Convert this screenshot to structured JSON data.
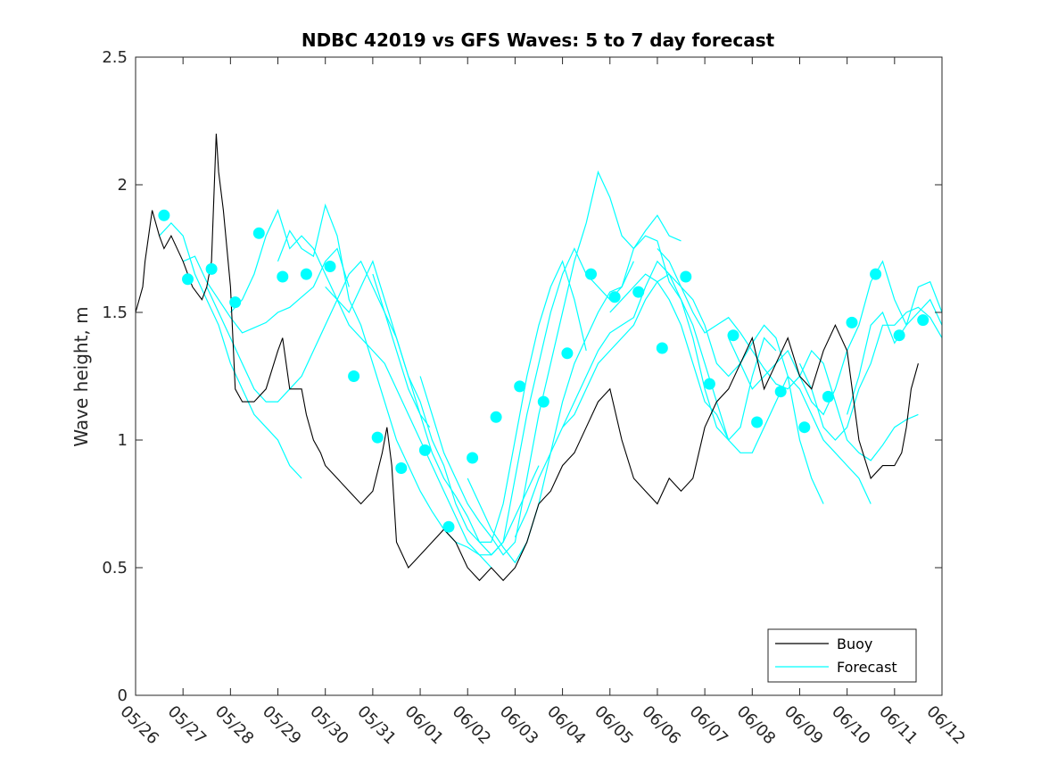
{
  "chart_data": {
    "type": "line",
    "title": "NDBC 42019 vs GFS Waves: 5 to 7 day forecast",
    "xlabel": "",
    "ylabel": "Wave height, m",
    "xlim": [
      0,
      17
    ],
    "ylim": [
      0,
      2.5
    ],
    "grid": false,
    "legend_position": "bottom-right",
    "x_tick_labels": [
      "05/26",
      "05/27",
      "05/28",
      "05/29",
      "05/30",
      "05/31",
      "06/01",
      "06/02",
      "06/03",
      "06/04",
      "06/05",
      "06/06",
      "06/07",
      "06/08",
      "06/09",
      "06/10",
      "06/11",
      "06/12"
    ],
    "y_ticks": [
      0,
      0.5,
      1,
      1.5,
      2,
      2.5
    ],
    "y_tick_labels": [
      "0",
      "0.5",
      "1",
      "1.5",
      "2",
      "2.5"
    ],
    "colors": {
      "buoy": "#000000",
      "forecast": "#00FFFF"
    },
    "series": [
      {
        "name": "Buoy",
        "x": [
          0,
          0.15,
          0.2,
          0.35,
          0.5,
          0.6,
          0.75,
          1.0,
          1.2,
          1.4,
          1.5,
          1.6,
          1.7,
          1.75,
          1.85,
          2.0,
          2.1,
          2.25,
          2.5,
          2.75,
          3.0,
          3.1,
          3.25,
          3.5,
          3.6,
          3.75,
          3.9,
          4.0,
          4.25,
          4.5,
          4.75,
          5.0,
          5.2,
          5.3,
          5.4,
          5.5,
          5.75,
          6.0,
          6.25,
          6.5,
          6.75,
          7.0,
          7.25,
          7.5,
          7.75,
          8.0,
          8.25,
          8.5,
          8.75,
          9.0,
          9.25,
          9.5,
          9.75,
          10.0,
          10.25,
          10.5,
          10.75,
          11.0,
          11.25,
          11.5,
          11.75,
          12.0,
          12.25,
          12.5,
          12.75,
          13.0,
          13.25,
          13.5,
          13.75,
          14.0,
          14.25,
          14.5,
          14.75,
          15.0,
          15.25,
          15.5,
          15.75,
          16.0,
          16.15,
          16.25,
          16.35,
          16.5
        ],
        "values": [
          1.5,
          1.6,
          1.7,
          1.9,
          1.8,
          1.75,
          1.8,
          1.7,
          1.6,
          1.55,
          1.6,
          1.7,
          2.2,
          2.05,
          1.9,
          1.6,
          1.2,
          1.15,
          1.15,
          1.2,
          1.35,
          1.4,
          1.2,
          1.2,
          1.1,
          1.0,
          0.95,
          0.9,
          0.85,
          0.8,
          0.75,
          0.8,
          0.95,
          1.05,
          0.9,
          0.6,
          0.5,
          0.55,
          0.6,
          0.65,
          0.6,
          0.5,
          0.45,
          0.5,
          0.45,
          0.5,
          0.6,
          0.75,
          0.8,
          0.9,
          0.95,
          1.05,
          1.15,
          1.2,
          1.0,
          0.85,
          0.8,
          0.75,
          0.85,
          0.8,
          0.85,
          1.05,
          1.15,
          1.2,
          1.3,
          1.4,
          1.2,
          1.3,
          1.4,
          1.25,
          1.2,
          1.35,
          1.45,
          1.35,
          1.0,
          0.85,
          0.9,
          0.9,
          0.95,
          1.05,
          1.2,
          1.3
        ]
      },
      {
        "name": "Forecast",
        "segments": [
          {
            "x": [
              0.5,
              0.75,
              1.0,
              1.25,
              1.5,
              1.75,
              2.0,
              2.25,
              2.5,
              2.75,
              3.0,
              3.25,
              3.5
            ],
            "values": [
              1.8,
              1.85,
              1.8,
              1.65,
              1.55,
              1.45,
              1.3,
              1.2,
              1.1,
              1.05,
              1.0,
              0.9,
              0.85
            ]
          },
          {
            "x": [
              1.0,
              1.25,
              1.5,
              1.75,
              2.0,
              2.25,
              2.5,
              2.75,
              3.0,
              3.25,
              3.5,
              3.75,
              4.0,
              4.25,
              4.5
            ],
            "values": [
              1.7,
              1.72,
              1.62,
              1.55,
              1.48,
              1.42,
              1.44,
              1.46,
              1.5,
              1.52,
              1.56,
              1.6,
              1.7,
              1.75,
              1.6
            ]
          },
          {
            "x": [
              1.5,
              1.75,
              2.0,
              2.25,
              2.5,
              2.75,
              3.0,
              3.25,
              3.5,
              3.75,
              4.0,
              4.25,
              4.5,
              4.75,
              5.0,
              5.25,
              5.5,
              5.75,
              6.0,
              6.2
            ],
            "values": [
              1.6,
              1.5,
              1.4,
              1.3,
              1.2,
              1.15,
              1.15,
              1.2,
              1.25,
              1.35,
              1.45,
              1.55,
              1.65,
              1.7,
              1.6,
              1.5,
              1.35,
              1.2,
              1.1,
              1.05
            ]
          },
          {
            "x": [
              2.0,
              2.25,
              2.5,
              2.75,
              3.0,
              3.25,
              3.5,
              3.75,
              4.0,
              4.25,
              4.5,
              4.75,
              5.0,
              5.25,
              5.5,
              5.75,
              6.0,
              6.25,
              6.5,
              6.75,
              7.0,
              7.25,
              7.5
            ],
            "values": [
              1.5,
              1.55,
              1.65,
              1.8,
              1.9,
              1.75,
              1.8,
              1.75,
              1.65,
              1.55,
              1.45,
              1.4,
              1.35,
              1.3,
              1.2,
              1.1,
              1.0,
              0.9,
              0.8,
              0.7,
              0.6,
              0.55,
              0.5
            ]
          },
          {
            "x": [
              3.0,
              3.25,
              3.5,
              3.75,
              4.0,
              4.25,
              4.5,
              4.75,
              5.0,
              5.25,
              5.5,
              5.75,
              6.0,
              6.25,
              6.5,
              6.75,
              7.0,
              7.25,
              7.5,
              7.75,
              8.0,
              8.25,
              8.5
            ],
            "values": [
              1.7,
              1.82,
              1.75,
              1.72,
              1.92,
              1.8,
              1.55,
              1.45,
              1.3,
              1.15,
              1.0,
              0.9,
              0.8,
              0.72,
              0.65,
              0.6,
              0.58,
              0.55,
              0.55,
              0.6,
              0.7,
              0.8,
              0.9
            ]
          },
          {
            "x": [
              4.0,
              4.25,
              4.5,
              4.75,
              5.0,
              5.25,
              5.5,
              5.75,
              6.0,
              6.25,
              6.5,
              6.75,
              7.0,
              7.25,
              7.5,
              7.75,
              8.0,
              8.25,
              8.5,
              8.75,
              9.0,
              9.25,
              9.5
            ],
            "values": [
              1.6,
              1.55,
              1.5,
              1.6,
              1.7,
              1.55,
              1.4,
              1.25,
              1.15,
              1.0,
              0.9,
              0.75,
              0.65,
              0.6,
              0.6,
              0.75,
              1.0,
              1.25,
              1.45,
              1.6,
              1.7,
              1.55,
              1.35
            ]
          },
          {
            "x": [
              5.0,
              5.25,
              5.5,
              5.75,
              6.0,
              6.25,
              6.5,
              6.75,
              7.0,
              7.25,
              7.5,
              7.75,
              8.0,
              8.25,
              8.5,
              8.75,
              9.0,
              9.25,
              9.5,
              9.75,
              10.0,
              10.25,
              10.5
            ],
            "values": [
              1.65,
              1.5,
              1.4,
              1.25,
              1.1,
              0.95,
              0.85,
              0.78,
              0.7,
              0.6,
              0.55,
              0.6,
              0.85,
              1.1,
              1.3,
              1.5,
              1.65,
              1.75,
              1.65,
              1.6,
              1.55,
              1.6,
              1.7
            ]
          },
          {
            "x": [
              6.0,
              6.25,
              6.5,
              6.75,
              7.0,
              7.25,
              7.5,
              7.75,
              8.0,
              8.25,
              8.5,
              8.75,
              9.0,
              9.25,
              9.5,
              9.75,
              10.0,
              10.25,
              10.5,
              10.75,
              11.0,
              11.25,
              11.5
            ],
            "values": [
              1.25,
              1.1,
              0.95,
              0.85,
              0.75,
              0.68,
              0.62,
              0.55,
              0.6,
              0.85,
              1.1,
              1.3,
              1.5,
              1.7,
              1.85,
              2.05,
              1.95,
              1.8,
              1.75,
              1.82,
              1.88,
              1.8,
              1.78
            ]
          },
          {
            "x": [
              7.0,
              7.25,
              7.5,
              7.75,
              8.0,
              8.25,
              8.5,
              8.75,
              9.0,
              9.25,
              9.5,
              9.75,
              10.0,
              10.25,
              10.5,
              10.75,
              11.0,
              11.25,
              11.5,
              11.75,
              12.0,
              12.25,
              12.5
            ],
            "values": [
              0.85,
              0.75,
              0.65,
              0.58,
              0.52,
              0.6,
              0.75,
              0.95,
              1.15,
              1.3,
              1.4,
              1.5,
              1.58,
              1.6,
              1.75,
              1.8,
              1.78,
              1.62,
              1.55,
              1.45,
              1.3,
              1.15,
              1.0
            ]
          },
          {
            "x": [
              8.0,
              8.25,
              8.5,
              8.75,
              9.0,
              9.25,
              9.5,
              9.75,
              10.0,
              10.25,
              10.5,
              10.75,
              11.0,
              11.25,
              11.5,
              11.75,
              12.0,
              12.25,
              12.5,
              12.75,
              13.0,
              13.25,
              13.5
            ],
            "values": [
              0.62,
              0.72,
              0.85,
              0.95,
              1.05,
              1.15,
              1.25,
              1.35,
              1.42,
              1.45,
              1.48,
              1.6,
              1.7,
              1.65,
              1.55,
              1.4,
              1.2,
              1.05,
              1.0,
              1.05,
              1.25,
              1.4,
              1.35
            ]
          },
          {
            "x": [
              9.0,
              9.25,
              9.5,
              9.75,
              10.0,
              10.25,
              10.5,
              10.75,
              11.0,
              11.25,
              11.5,
              11.75,
              12.0,
              12.25,
              12.5,
              12.75,
              13.0,
              13.25,
              13.5,
              13.75,
              14.0,
              14.25,
              14.5
            ],
            "values": [
              1.05,
              1.1,
              1.2,
              1.3,
              1.35,
              1.4,
              1.45,
              1.55,
              1.62,
              1.65,
              1.6,
              1.55,
              1.45,
              1.3,
              1.25,
              1.3,
              1.38,
              1.45,
              1.4,
              1.25,
              1.0,
              0.85,
              0.75
            ]
          },
          {
            "x": [
              10.0,
              10.25,
              10.5,
              10.75,
              11.0,
              11.25,
              11.5,
              11.75,
              12.0,
              12.25,
              12.5,
              12.75,
              13.0,
              13.25,
              13.5,
              13.75,
              14.0,
              14.25,
              14.5,
              14.75,
              15.0,
              15.25,
              15.5
            ],
            "values": [
              1.5,
              1.55,
              1.6,
              1.65,
              1.62,
              1.55,
              1.45,
              1.3,
              1.15,
              1.1,
              1.0,
              0.95,
              0.95,
              1.05,
              1.15,
              1.25,
              1.2,
              1.1,
              1.0,
              0.95,
              0.9,
              0.85,
              0.75
            ]
          },
          {
            "x": [
              11.0,
              11.25,
              11.5,
              11.75,
              12.0,
              12.25,
              12.5,
              12.75,
              13.0,
              13.25,
              13.5,
              13.75,
              14.0,
              14.25,
              14.5,
              14.75,
              15.0,
              15.25,
              15.5,
              15.75,
              16.0,
              16.25,
              16.5
            ],
            "values": [
              1.75,
              1.7,
              1.6,
              1.5,
              1.42,
              1.45,
              1.48,
              1.42,
              1.35,
              1.28,
              1.22,
              1.2,
              1.25,
              1.35,
              1.3,
              1.15,
              1.0,
              0.95,
              0.92,
              0.98,
              1.05,
              1.08,
              1.1
            ]
          },
          {
            "x": [
              12.5,
              12.75,
              13.0,
              13.25,
              13.5,
              13.75,
              14.0,
              14.25,
              14.5,
              14.75,
              15.0,
              15.25,
              15.5,
              15.75,
              16.0,
              16.25,
              16.5,
              16.75,
              17.0
            ],
            "values": [
              1.4,
              1.3,
              1.2,
              1.25,
              1.3,
              1.35,
              1.25,
              1.15,
              1.1,
              1.2,
              1.35,
              1.45,
              1.62,
              1.7,
              1.55,
              1.45,
              1.5,
              1.55,
              1.45
            ]
          },
          {
            "x": [
              14.0,
              14.25,
              14.5,
              14.75,
              15.0,
              15.25,
              15.5,
              15.75,
              16.0,
              16.25,
              16.5,
              16.75,
              17.0
            ],
            "values": [
              1.3,
              1.2,
              1.05,
              1.0,
              1.05,
              1.2,
              1.3,
              1.45,
              1.45,
              1.5,
              1.52,
              1.48,
              1.4
            ]
          },
          {
            "x": [
              15.0,
              15.25,
              15.5,
              15.75,
              16.0,
              16.25,
              16.5,
              16.75,
              17.0
            ],
            "values": [
              1.1,
              1.25,
              1.45,
              1.5,
              1.38,
              1.45,
              1.6,
              1.62,
              1.5
            ]
          }
        ]
      },
      {
        "name": "",
        "marker": "circle",
        "x": [
          0.6,
          1.1,
          1.6,
          2.1,
          2.6,
          3.1,
          3.6,
          4.1,
          4.6,
          5.1,
          5.6,
          6.1,
          6.6,
          7.1,
          7.6,
          8.1,
          8.6,
          9.1,
          9.6,
          10.1,
          10.6,
          11.1,
          11.6,
          12.1,
          12.6,
          13.1,
          13.6,
          14.1,
          14.6,
          15.1,
          15.6,
          16.1,
          16.6
        ],
        "values": [
          1.88,
          1.63,
          1.67,
          1.54,
          1.81,
          1.64,
          1.65,
          1.68,
          1.25,
          1.01,
          0.89,
          0.96,
          0.66,
          0.93,
          1.09,
          1.21,
          1.15,
          1.34,
          1.65,
          1.56,
          1.58,
          1.36,
          1.64,
          1.22,
          1.41,
          1.07,
          1.19,
          1.05,
          1.17,
          1.46,
          1.65,
          1.41,
          1.47
        ]
      }
    ],
    "legend": [
      "Buoy",
      "Forecast"
    ]
  }
}
